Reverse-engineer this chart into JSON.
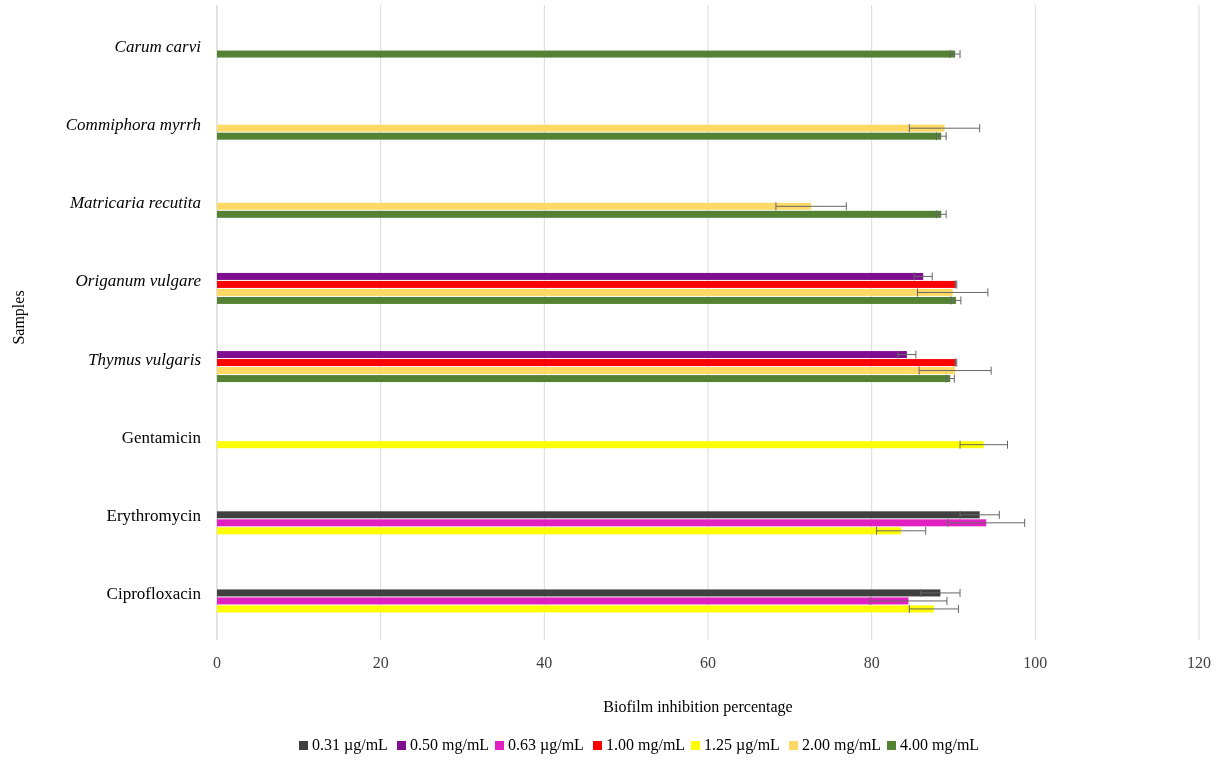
{
  "chart_data": {
    "type": "bar",
    "orientation": "horizontal",
    "xlabel": "Biofilm inhibition percentage",
    "ylabel": "Samples",
    "categories": [
      "Carum carvi",
      "Commiphora myrrh",
      "Matricaria recutita",
      "Origanum vulgare",
      "Thymus vulgaris",
      "Gentamicin",
      "Erythromycin",
      "Ciprofloxacin"
    ],
    "xlim": [
      0,
      120
    ],
    "xticks": [
      0,
      20,
      40,
      60,
      80,
      100,
      120
    ],
    "grid": "x",
    "legend": "bottom",
    "series": [
      {
        "name": "0.31 µg/mL",
        "color": "#404040",
        "values": [
          null,
          null,
          null,
          null,
          null,
          null,
          93.2,
          88.4
        ],
        "errors": [
          null,
          null,
          null,
          null,
          null,
          null,
          2.4,
          2.4
        ]
      },
      {
        "name": "0.50 mg/mL",
        "color": "#7f0f8f",
        "values": [
          null,
          null,
          null,
          86.3,
          84.3,
          null,
          null,
          null
        ],
        "errors": [
          null,
          null,
          null,
          1.1,
          1.1,
          null,
          null,
          null
        ]
      },
      {
        "name": "0.63 µg/mL",
        "color": "#e020c0",
        "values": [
          null,
          null,
          null,
          null,
          null,
          null,
          94.0,
          84.5
        ],
        "errors": [
          null,
          null,
          null,
          null,
          null,
          null,
          4.7,
          4.7
        ]
      },
      {
        "name": "1.00 mg/mL",
        "color": "#ff0000",
        "values": [
          null,
          null,
          null,
          90.3,
          90.3,
          null,
          null,
          null
        ],
        "errors": [
          null,
          null,
          null,
          0.1,
          0.1,
          null,
          null,
          null
        ]
      },
      {
        "name": "1.25 µg/mL",
        "color": "#ffff00",
        "values": [
          null,
          null,
          null,
          null,
          null,
          93.7,
          83.6,
          87.6
        ],
        "errors": [
          null,
          null,
          null,
          null,
          null,
          2.9,
          3.0,
          3.0
        ]
      },
      {
        "name": "2.00 mg/mL",
        "color": "#ffd966",
        "values": [
          null,
          88.9,
          72.6,
          89.9,
          90.2,
          null,
          null,
          null
        ],
        "errors": [
          null,
          4.3,
          4.3,
          4.3,
          4.4,
          null,
          null,
          null
        ]
      },
      {
        "name": "4.00 mg/mL",
        "color": "#548235",
        "values": [
          90.2,
          88.5,
          88.5,
          90.3,
          89.6,
          null,
          null,
          null
        ],
        "errors": [
          0.6,
          0.6,
          0.6,
          0.6,
          0.5,
          null,
          null,
          null
        ]
      }
    ]
  }
}
